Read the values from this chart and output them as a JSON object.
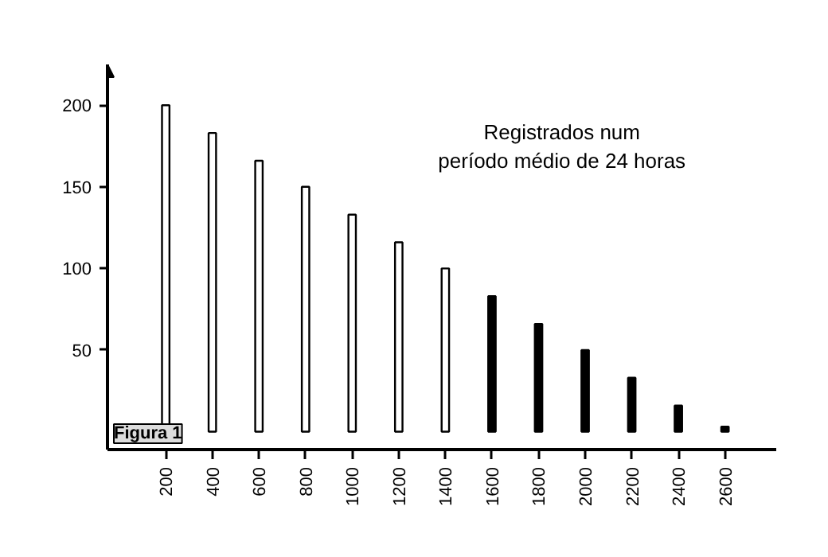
{
  "chart_data": {
    "type": "bar",
    "x": [
      200,
      400,
      600,
      800,
      1000,
      1200,
      1400,
      1600,
      1800,
      2000,
      2200,
      2400,
      2600
    ],
    "values": [
      200,
      183,
      166,
      150,
      133,
      116,
      100,
      83,
      66,
      50,
      33,
      16,
      3
    ],
    "colors": [
      "#ffffff",
      "#ffffff",
      "#ffffff",
      "#ffffff",
      "#ffffff",
      "#ffffff",
      "#ffffff",
      "#000000",
      "#000000",
      "#000000",
      "#000000",
      "#000000",
      "#000000"
    ],
    "xlim": [
      -50,
      2820
    ],
    "ylim": [
      -11,
      225
    ],
    "xticks": [
      200,
      400,
      600,
      800,
      1000,
      1200,
      1400,
      1600,
      1800,
      2000,
      2200,
      2400,
      2600
    ],
    "yticks": [
      50,
      100,
      150,
      200
    ],
    "grid": false,
    "annotations": [
      {
        "text": "Registrados num\nperíodo médio de 24 horas"
      },
      {
        "text": "Figura 1"
      }
    ]
  }
}
